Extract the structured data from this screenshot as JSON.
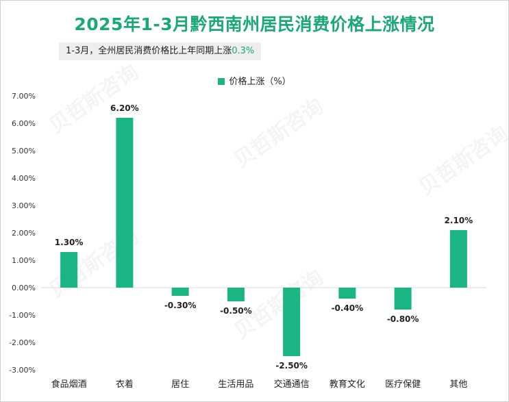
{
  "header": {
    "title": "2025年1-3月黔西南州居民消费价格上涨情况",
    "subtitle_text": "1-3月，全州居民消费价格比上年同期上涨",
    "subtitle_value": "0.3%"
  },
  "watermark": "贝哲斯咨询",
  "colors": {
    "bar": "#1ab583",
    "title": "#1aa879"
  },
  "chart_data": {
    "type": "bar",
    "categories": [
      "食品烟酒",
      "衣着",
      "居住",
      "生活用品",
      "交通通信",
      "教育文化",
      "医疗保健",
      "其他"
    ],
    "series": [
      {
        "name": "价格上涨（%）",
        "values": [
          1.3,
          6.2,
          -0.3,
          -0.5,
          -2.5,
          -0.4,
          -0.8,
          2.1
        ]
      }
    ],
    "value_labels": [
      "1.30%",
      "6.20%",
      "-0.30%",
      "-0.50%",
      "-2.50%",
      "-0.40%",
      "-0.80%",
      "2.10%"
    ],
    "ylim": [
      -3,
      7
    ],
    "yticks": [
      7,
      6,
      5,
      4,
      3,
      2,
      1,
      0,
      -1,
      -2,
      -3
    ],
    "ytick_labels": [
      "7.00%",
      "6.00%",
      "5.00%",
      "4.00%",
      "3.00%",
      "2.00%",
      "1.00%",
      "0.00%",
      "-1.00%",
      "-2.00%",
      "-3.00%"
    ],
    "legend_position": "top-center",
    "grid": false
  }
}
